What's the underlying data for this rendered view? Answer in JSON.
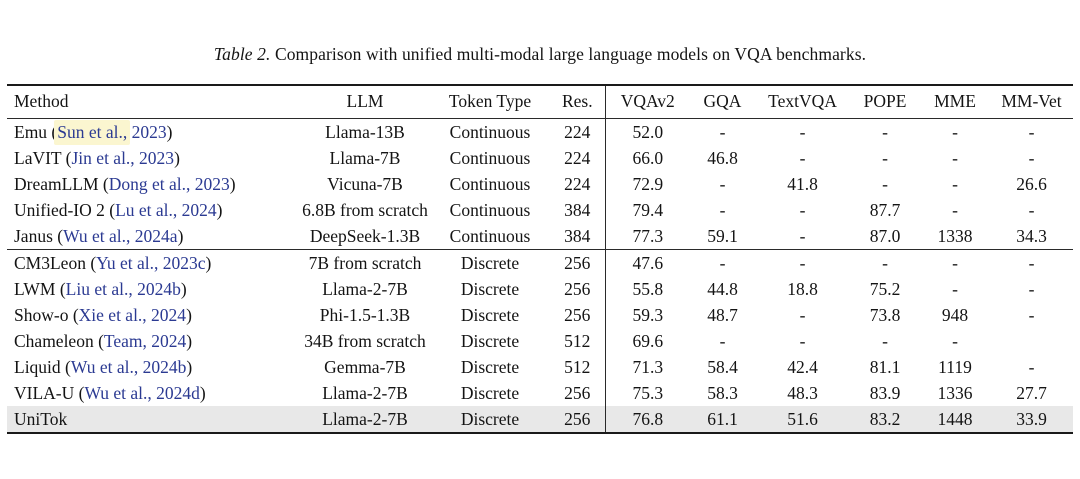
{
  "caption": {
    "label": "Table 2.",
    "text": "Comparison with unified multi-modal large language models on VQA benchmarks."
  },
  "colors": {
    "citation_blue": "#2b3a92",
    "text_highlight_yellow": "#fbf6d0",
    "row_highlight_gray": "#e8e8e8"
  },
  "table": {
    "columns": [
      "Method",
      "LLM",
      "Token Type",
      "Res.",
      "VQAv2",
      "GQA",
      "TextVQA",
      "POPE",
      "MME",
      "MM-Vet"
    ],
    "groups": [
      {
        "rows": [
          {
            "prefix": "Emu (",
            "cite": "Sun et al., 2023",
            "hl": "Sun et al.,",
            "suffix": ")",
            "llm": "Llama-13B",
            "token_type": "Continuous",
            "res": "224",
            "vqav2": "52.0",
            "gqa": "-",
            "textvqa": "-",
            "pope": "-",
            "mme": "-",
            "mmvet": "-"
          },
          {
            "prefix": "LaVIT (",
            "cite": "Jin et al., 2023",
            "suffix": ")",
            "llm": "Llama-7B",
            "token_type": "Continuous",
            "res": "224",
            "vqav2": "66.0",
            "gqa": "46.8",
            "textvqa": "-",
            "pope": "-",
            "mme": "-",
            "mmvet": "-"
          },
          {
            "prefix": "DreamLLM (",
            "cite": "Dong et al., 2023",
            "suffix": ")",
            "llm": "Vicuna-7B",
            "token_type": "Continuous",
            "res": "224",
            "vqav2": "72.9",
            "gqa": "-",
            "textvqa": "41.8",
            "pope": "-",
            "mme": "-",
            "mmvet": "26.6"
          },
          {
            "prefix": "Unified-IO 2 (",
            "cite": "Lu et al., 2024",
            "suffix": ")",
            "llm": "6.8B from scratch",
            "token_type": "Continuous",
            "res": "384",
            "vqav2": "79.4",
            "gqa": "-",
            "textvqa": "-",
            "pope": "87.7",
            "mme": "-",
            "mmvet": "-"
          },
          {
            "prefix": "Janus (",
            "cite": "Wu et al., 2024a",
            "suffix": ")",
            "llm": "DeepSeek-1.3B",
            "token_type": "Continuous",
            "res": "384",
            "vqav2": "77.3",
            "gqa": "59.1",
            "textvqa": "-",
            "pope": "87.0",
            "mme": "1338",
            "mmvet": "34.3"
          }
        ]
      },
      {
        "rows": [
          {
            "prefix": "CM3Leon (",
            "cite": "Yu et al., 2023c",
            "suffix": ")",
            "llm": "7B from scratch",
            "token_type": "Discrete",
            "res": "256",
            "vqav2": "47.6",
            "gqa": "-",
            "textvqa": "-",
            "pope": "-",
            "mme": "-",
            "mmvet": "-"
          },
          {
            "prefix": "LWM (",
            "cite": "Liu et al., 2024b",
            "suffix": ")",
            "llm": "Llama-2-7B",
            "token_type": "Discrete",
            "res": "256",
            "vqav2": "55.8",
            "gqa": "44.8",
            "textvqa": "18.8",
            "pope": "75.2",
            "mme": "-",
            "mmvet": "-"
          },
          {
            "prefix": "Show-o (",
            "cite": "Xie et al., 2024",
            "suffix": ")",
            "llm": "Phi-1.5-1.3B",
            "token_type": "Discrete",
            "res": "256",
            "vqav2": "59.3",
            "gqa": "48.7",
            "textvqa": "-",
            "pope": "73.8",
            "mme": "948",
            "mmvet": "-"
          },
          {
            "prefix": "Chameleon (",
            "cite": "Team, 2024",
            "suffix": ")",
            "llm": "34B from scratch",
            "token_type": "Discrete",
            "res": "512",
            "vqav2": "69.6",
            "gqa": "-",
            "textvqa": "-",
            "pope": "-",
            "mme": "-",
            "mmvet": ""
          },
          {
            "prefix": "Liquid (",
            "cite": "Wu et al., 2024b",
            "suffix": ")",
            "llm": "Gemma-7B",
            "token_type": "Discrete",
            "res": "512",
            "vqav2": "71.3",
            "gqa": "58.4",
            "textvqa": "42.4",
            "pope": "81.1",
            "mme": "1119",
            "mmvet": "-"
          },
          {
            "prefix": "VILA-U (",
            "cite": "Wu et al., 2024d",
            "suffix": ")",
            "llm": "Llama-2-7B",
            "token_type": "Discrete",
            "res": "256",
            "vqav2": "75.3",
            "gqa": "58.3",
            "textvqa": "48.3",
            "pope": "83.9",
            "mme": "1336",
            "mmvet": "27.7"
          },
          {
            "prefix": "UniTok",
            "llm": "Llama-2-7B",
            "token_type": "Discrete",
            "res": "256",
            "vqav2": "76.8",
            "gqa": "61.1",
            "textvqa": "51.6",
            "pope": "83.2",
            "mme": "1448",
            "mmvet": "33.9",
            "highlighted": true
          }
        ]
      }
    ]
  }
}
